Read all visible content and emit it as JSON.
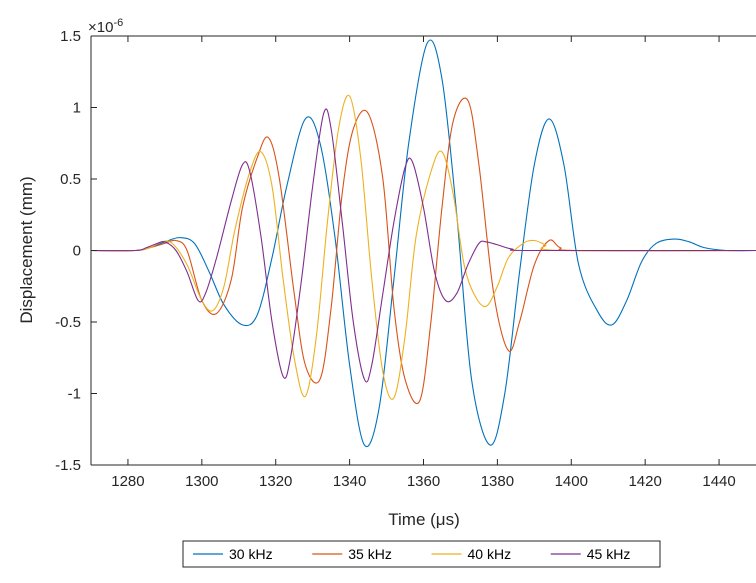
{
  "chart_data": {
    "type": "line",
    "xlabel": "Time (μs)",
    "ylabel": "Displacement (mm)",
    "y_exponent_label": "×10",
    "y_exponent_power": "-6",
    "xlim": [
      1270,
      1450
    ],
    "ylim": [
      -1.5,
      1.5
    ],
    "x_ticks": [
      1280,
      1300,
      1320,
      1340,
      1360,
      1380,
      1400,
      1420,
      1440
    ],
    "y_ticks": [
      -1.5,
      -1,
      -0.5,
      0,
      0.5,
      1,
      1.5
    ],
    "y_tick_labels": [
      "-1.5",
      "-1",
      "-0.5",
      "0",
      "0.5",
      "1",
      "1.5"
    ],
    "grid": false,
    "legend_position": "bottom-outside, horizontal",
    "series": [
      {
        "name": "30 kHz",
        "color": "#0072BD",
        "points": [
          [
            1270,
            0
          ],
          [
            1282,
            0
          ],
          [
            1286,
            0.02
          ],
          [
            1290,
            0.06
          ],
          [
            1294,
            0.09
          ],
          [
            1298,
            0.05
          ],
          [
            1302,
            -0.15
          ],
          [
            1306,
            -0.38
          ],
          [
            1311,
            -0.52
          ],
          [
            1315,
            -0.45
          ],
          [
            1319,
            -0.05
          ],
          [
            1323,
            0.45
          ],
          [
            1328,
            0.92
          ],
          [
            1332,
            0.75
          ],
          [
            1336,
            0.1
          ],
          [
            1340,
            -0.8
          ],
          [
            1344,
            -1.36
          ],
          [
            1348,
            -1.1
          ],
          [
            1352,
            -0.2
          ],
          [
            1356,
            0.75
          ],
          [
            1361,
            1.45
          ],
          [
            1365,
            1.2
          ],
          [
            1369,
            0.25
          ],
          [
            1373,
            -0.9
          ],
          [
            1378,
            -1.36
          ],
          [
            1382,
            -1.0
          ],
          [
            1386,
            -0.15
          ],
          [
            1390,
            0.6
          ],
          [
            1394,
            0.92
          ],
          [
            1398,
            0.6
          ],
          [
            1402,
            -0.1
          ],
          [
            1407,
            -0.42
          ],
          [
            1411,
            -0.52
          ],
          [
            1415,
            -0.35
          ],
          [
            1419,
            -0.08
          ],
          [
            1423,
            0.05
          ],
          [
            1428,
            0.08
          ],
          [
            1432,
            0.06
          ],
          [
            1436,
            0.02
          ],
          [
            1442,
            0
          ],
          [
            1450,
            0
          ]
        ]
      },
      {
        "name": "35 kHz",
        "color": "#D95319",
        "points": [
          [
            1270,
            0
          ],
          [
            1282,
            0
          ],
          [
            1286,
            0.02
          ],
          [
            1290,
            0.05
          ],
          [
            1293,
            0.07
          ],
          [
            1296,
            0.0
          ],
          [
            1300,
            -0.35
          ],
          [
            1304,
            -0.44
          ],
          [
            1308,
            -0.2
          ],
          [
            1311,
            0.3
          ],
          [
            1315,
            0.65
          ],
          [
            1318,
            0.79
          ],
          [
            1321,
            0.5
          ],
          [
            1325,
            -0.3
          ],
          [
            1328,
            -0.8
          ],
          [
            1332,
            -0.9
          ],
          [
            1335,
            -0.4
          ],
          [
            1338,
            0.4
          ],
          [
            1341,
            0.85
          ],
          [
            1345,
            0.96
          ],
          [
            1349,
            0.5
          ],
          [
            1352,
            -0.4
          ],
          [
            1355,
            -0.9
          ],
          [
            1359,
            -1.05
          ],
          [
            1362,
            -0.5
          ],
          [
            1365,
            0.3
          ],
          [
            1368,
            0.9
          ],
          [
            1372,
            1.05
          ],
          [
            1375,
            0.6
          ],
          [
            1379,
            -0.3
          ],
          [
            1383,
            -0.7
          ],
          [
            1386,
            -0.5
          ],
          [
            1390,
            -0.1
          ],
          [
            1394,
            0.07
          ],
          [
            1397,
            0.02
          ],
          [
            1402,
            0
          ],
          [
            1450,
            0
          ]
        ]
      },
      {
        "name": "40 kHz",
        "color": "#EDB120",
        "points": [
          [
            1270,
            0
          ],
          [
            1282,
            0
          ],
          [
            1286,
            0.02
          ],
          [
            1289,
            0.06
          ],
          [
            1292,
            0.05
          ],
          [
            1296,
            -0.1
          ],
          [
            1300,
            -0.35
          ],
          [
            1303,
            -0.42
          ],
          [
            1306,
            -0.25
          ],
          [
            1309,
            0.15
          ],
          [
            1313,
            0.55
          ],
          [
            1316,
            0.69
          ],
          [
            1319,
            0.45
          ],
          [
            1322,
            -0.2
          ],
          [
            1325,
            -0.75
          ],
          [
            1328,
            -1.02
          ],
          [
            1331,
            -0.6
          ],
          [
            1334,
            0.2
          ],
          [
            1337,
            0.85
          ],
          [
            1340,
            1.08
          ],
          [
            1343,
            0.65
          ],
          [
            1346,
            -0.2
          ],
          [
            1349,
            -0.85
          ],
          [
            1352,
            -1.03
          ],
          [
            1355,
            -0.6
          ],
          [
            1358,
            0.1
          ],
          [
            1362,
            0.55
          ],
          [
            1365,
            0.69
          ],
          [
            1368,
            0.4
          ],
          [
            1371,
            -0.1
          ],
          [
            1374,
            -0.32
          ],
          [
            1377,
            -0.39
          ],
          [
            1380,
            -0.25
          ],
          [
            1383,
            -0.05
          ],
          [
            1387,
            0.05
          ],
          [
            1390,
            0.07
          ],
          [
            1393,
            0.04
          ],
          [
            1397,
            0
          ],
          [
            1450,
            0
          ]
        ]
      },
      {
        "name": "45 kHz",
        "color": "#7E2F8E",
        "points": [
          [
            1270,
            0
          ],
          [
            1282,
            0
          ],
          [
            1285,
            0.02
          ],
          [
            1288,
            0.05
          ],
          [
            1290,
            0.06
          ],
          [
            1293,
            0.0
          ],
          [
            1296,
            -0.15
          ],
          [
            1299,
            -0.35
          ],
          [
            1301,
            -0.3
          ],
          [
            1304,
            -0.05
          ],
          [
            1308,
            0.35
          ],
          [
            1311,
            0.6
          ],
          [
            1313,
            0.55
          ],
          [
            1316,
            0.1
          ],
          [
            1319,
            -0.5
          ],
          [
            1322,
            -0.88
          ],
          [
            1324,
            -0.75
          ],
          [
            1327,
            -0.2
          ],
          [
            1330,
            0.45
          ],
          [
            1333,
            0.96
          ],
          [
            1335,
            0.85
          ],
          [
            1338,
            0.2
          ],
          [
            1341,
            -0.5
          ],
          [
            1344,
            -0.9
          ],
          [
            1346,
            -0.8
          ],
          [
            1349,
            -0.3
          ],
          [
            1352,
            0.2
          ],
          [
            1355,
            0.58
          ],
          [
            1357,
            0.62
          ],
          [
            1360,
            0.3
          ],
          [
            1363,
            -0.15
          ],
          [
            1366,
            -0.35
          ],
          [
            1369,
            -0.3
          ],
          [
            1372,
            -0.1
          ],
          [
            1375,
            0.05
          ],
          [
            1377,
            0.06
          ],
          [
            1380,
            0.04
          ],
          [
            1384,
            0.01
          ],
          [
            1390,
            0
          ],
          [
            1450,
            0
          ]
        ]
      }
    ]
  }
}
